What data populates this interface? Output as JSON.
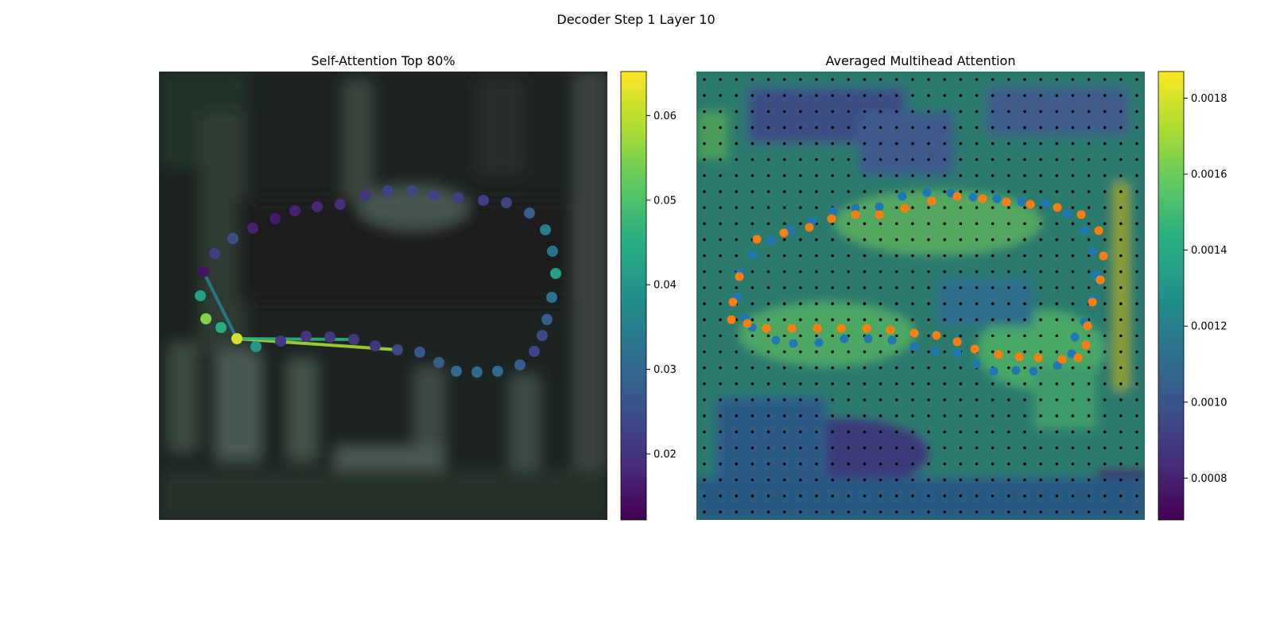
{
  "figure": {
    "suptitle": "Decoder Step 1 Layer 10"
  },
  "chart_data": [
    {
      "type": "scatter",
      "title": "Self-Attention Top 80%",
      "background": "blurred dark photo",
      "colormap": "viridis",
      "colorbar": {
        "ticks": [
          0.02,
          0.03,
          0.04,
          0.05,
          0.06
        ],
        "range": [
          0.0122,
          0.0652
        ]
      },
      "points": [
        {
          "x": 0.0,
          "y": 0.0,
          "v": 0.025
        },
        {
          "x": 0.0,
          "y": 0.0,
          "v": 0.022
        },
        {
          "x": 0.0,
          "y": 0.0,
          "v": 0.015
        },
        {
          "x": 0.0,
          "y": 0.0,
          "v": 0.017
        },
        {
          "x": 0.0,
          "y": 0.0,
          "v": 0.016
        },
        {
          "x": 0.0,
          "y": 0.0,
          "v": 0.017
        },
        {
          "x": 0.0,
          "y": 0.0,
          "v": 0.018
        },
        {
          "x": 0.0,
          "y": 0.0,
          "v": 0.019
        },
        {
          "x": 0.0,
          "y": 0.0,
          "v": 0.02
        },
        {
          "x": 0.0,
          "y": 0.0,
          "v": 0.023
        },
        {
          "x": 0.0,
          "y": 0.0,
          "v": 0.024
        },
        {
          "x": 0.0,
          "y": 0.0,
          "v": 0.023
        },
        {
          "x": 0.0,
          "y": 0.0,
          "v": 0.022
        },
        {
          "x": 0.0,
          "y": 0.0,
          "v": 0.022
        },
        {
          "x": 0.0,
          "y": 0.0,
          "v": 0.023
        },
        {
          "x": 0.0,
          "y": 0.0,
          "v": 0.028
        },
        {
          "x": 0.0,
          "y": 0.0,
          "v": 0.034
        },
        {
          "x": 0.0,
          "y": 0.0,
          "v": 0.032
        },
        {
          "x": 0.0,
          "y": 0.0,
          "v": 0.042
        },
        {
          "x": 0.0,
          "y": 0.0,
          "v": 0.032
        },
        {
          "x": 0.0,
          "y": 0.0,
          "v": 0.028
        },
        {
          "x": 0.0,
          "y": 0.0,
          "v": 0.024
        },
        {
          "x": 0.0,
          "y": 0.0,
          "v": 0.023
        },
        {
          "x": 0.0,
          "y": 0.0,
          "v": 0.028
        },
        {
          "x": 0.0,
          "y": 0.0,
          "v": 0.03
        },
        {
          "x": 0.0,
          "y": 0.0,
          "v": 0.03
        },
        {
          "x": 0.0,
          "y": 0.0,
          "v": 0.03
        },
        {
          "x": 0.0,
          "y": 0.0,
          "v": 0.028
        },
        {
          "x": 0.0,
          "y": 0.0,
          "v": 0.027
        },
        {
          "x": 0.0,
          "y": 0.0,
          "v": 0.024
        },
        {
          "x": 0.0,
          "y": 0.0,
          "v": 0.021
        },
        {
          "x": 0.0,
          "y": 0.0,
          "v": 0.021
        },
        {
          "x": 0.0,
          "y": 0.0,
          "v": 0.021
        },
        {
          "x": 0.0,
          "y": 0.0,
          "v": 0.02
        },
        {
          "x": 0.0,
          "y": 0.0,
          "v": 0.021
        },
        {
          "x": 0.0,
          "y": 0.0,
          "v": 0.04
        },
        {
          "x": 0.0,
          "y": 0.0,
          "v": 0.062
        },
        {
          "x": 0.0,
          "y": 0.0,
          "v": 0.045
        },
        {
          "x": 0.0,
          "y": 0.0,
          "v": 0.055
        },
        {
          "x": 0.0,
          "y": 0.0,
          "v": 0.042
        },
        {
          "x": 0.0,
          "y": 0.0,
          "v": 0.026
        }
      ],
      "attention_edges": [
        {
          "from": 36,
          "to": 2,
          "v": 0.035
        },
        {
          "from": 36,
          "to": 29,
          "v": 0.058
        },
        {
          "from": 36,
          "to": 31,
          "v": 0.046
        }
      ]
    },
    {
      "type": "heatmap",
      "title": "Averaged Multihead Attention",
      "colormap": "viridis",
      "colorbar": {
        "ticks": [
          0.0008,
          0.001,
          0.0012,
          0.0014,
          0.0016,
          0.0018
        ],
        "range": [
          0.00069,
          0.00187
        ]
      },
      "grid": {
        "rows": 28,
        "cols": 28
      },
      "series": [
        {
          "color": "#1f77b4"
        },
        {
          "color": "#ff7f0e"
        }
      ]
    }
  ]
}
